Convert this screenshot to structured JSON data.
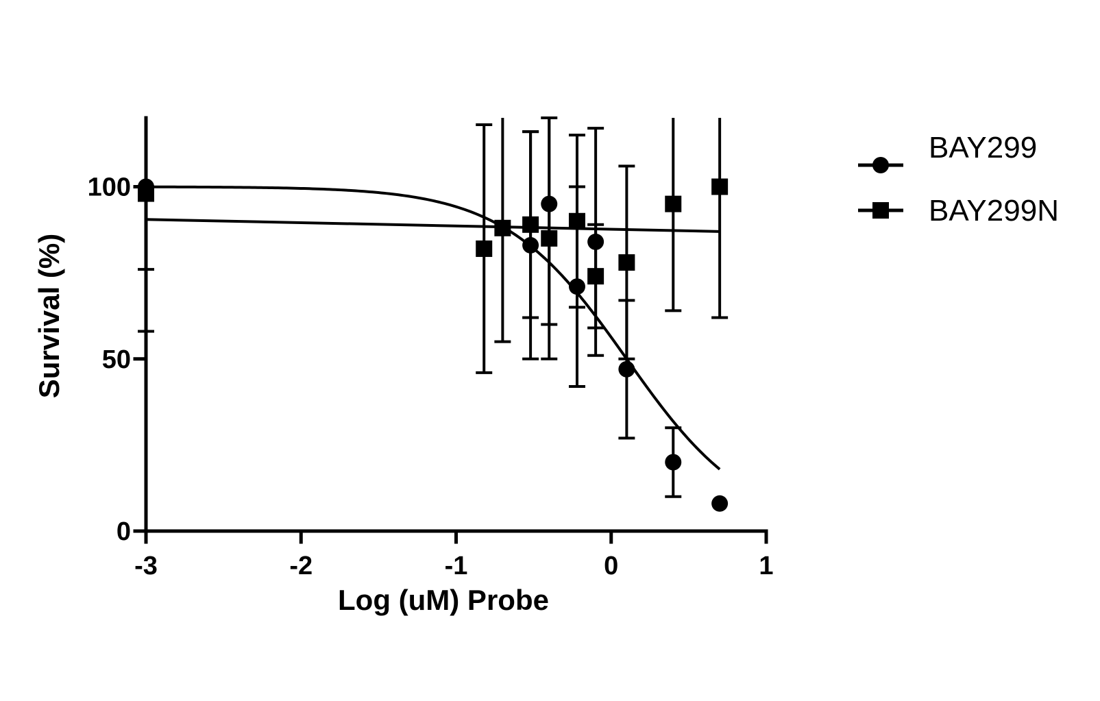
{
  "chart_data": {
    "type": "scatter",
    "xlabel": "Log (uM) Probe",
    "ylabel": "Survival (%)",
    "xlim": [
      -3,
      1
    ],
    "ylim": [
      0,
      120
    ],
    "x_ticks": [
      -3,
      -2,
      -1,
      0,
      1
    ],
    "y_ticks": [
      0,
      50,
      100
    ],
    "grid": false,
    "legend_position": "right",
    "series": [
      {
        "name": "BAY299",
        "marker": "circle",
        "color": "#000000",
        "points": [
          {
            "x": -3.0,
            "y": 100,
            "err": 24
          },
          {
            "x": -0.52,
            "y": 83,
            "err": 33
          },
          {
            "x": -0.4,
            "y": 95,
            "err": 35
          },
          {
            "x": -0.22,
            "y": 71,
            "err": 29
          },
          {
            "x": -0.1,
            "y": 84,
            "err": 33
          },
          {
            "x": 0.1,
            "y": 47,
            "err": 20
          },
          {
            "x": 0.4,
            "y": 20,
            "err": 10
          },
          {
            "x": 0.7,
            "y": 8,
            "err": 0
          }
        ],
        "fit": {
          "top": 100,
          "bottom": 0,
          "log_ic50": 0.1,
          "hill": -1.1
        }
      },
      {
        "name": "BAY299N",
        "marker": "square",
        "color": "#000000",
        "points": [
          {
            "x": -3.0,
            "y": 98,
            "err": 40
          },
          {
            "x": -0.82,
            "y": 82,
            "err": 36
          },
          {
            "x": -0.7,
            "y": 88,
            "err": 33
          },
          {
            "x": -0.52,
            "y": 89,
            "err": 27
          },
          {
            "x": -0.4,
            "y": 85,
            "err": 35
          },
          {
            "x": -0.22,
            "y": 90,
            "err": 25
          },
          {
            "x": -0.1,
            "y": 74,
            "err": 15
          },
          {
            "x": 0.1,
            "y": 78,
            "err": 28
          },
          {
            "x": 0.4,
            "y": 95,
            "err": 31
          },
          {
            "x": 0.7,
            "y": 100,
            "err": 38
          }
        ],
        "fit": {
          "linear": true,
          "x0": -3.0,
          "y0": 90.5,
          "x1": 0.7,
          "y1": 87
        }
      }
    ]
  }
}
